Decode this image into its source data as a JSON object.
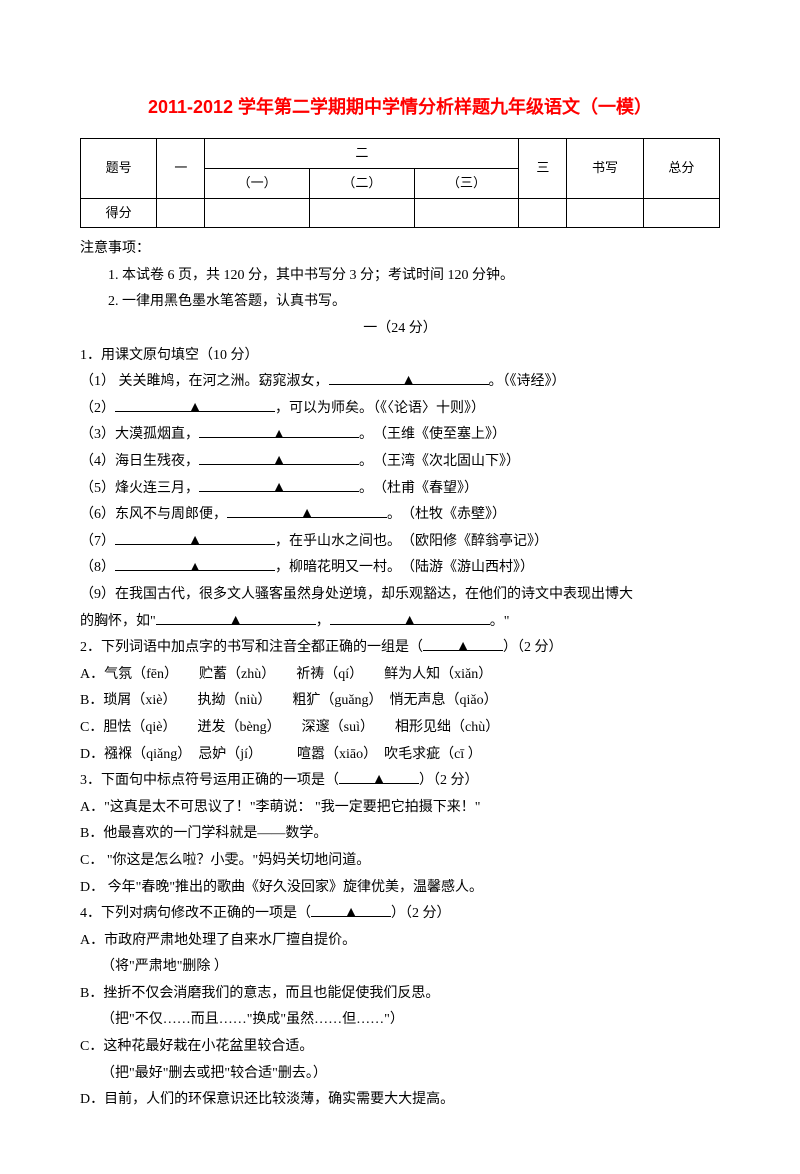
{
  "title": "2011-2012 学年第二学期期中学情分析样题九年级语文（一模）",
  "score_table": {
    "headers": {
      "num": "题号",
      "one": "一",
      "two": "二",
      "two_1": "（一）",
      "two_2": "（二）",
      "two_3": "（三）",
      "three": "三",
      "write": "书写",
      "total": "总分"
    },
    "row2": "得分"
  },
  "notice_heading": "注意事项：",
  "notices": [
    "1. 本试卷 6 页，共 120 分，其中书写分 3 分；考试时间 120 分钟。",
    "2. 一律用黑色墨水笔答题，认真书写。"
  ],
  "section1_heading": "一（24 分）",
  "q1": {
    "stem": "1．用课文原句填空（10 分）",
    "items": [
      {
        "pre": "（1） 关关雎鸠，在河之洲。窈窕淑女，",
        "tail": "。（《诗经》）"
      },
      {
        "pre": "（2）",
        "tail": "，可以为师矣。（《〈论语〉十则》）"
      },
      {
        "pre": "（3）大漠孤烟直，",
        "tail": "。　（王维《使至塞上》）"
      },
      {
        "pre": "（4）海日生残夜，",
        "tail": "。　（王湾《次北固山下》）"
      },
      {
        "pre": "（5）烽火连三月，",
        "tail": "。　（杜甫《春望》）"
      },
      {
        "pre": "（6）东风不与周郎便，",
        "tail": "。　（杜牧《赤壁》）"
      },
      {
        "pre": "（7）",
        "tail": "，在乎山水之间也。　（欧阳修《醉翁亭记》）"
      },
      {
        "pre": "（8）",
        "tail": "，柳暗花明又一村。　（陆游《游山西村》）"
      }
    ],
    "item9_pre": "（9）在我国古代，很多文人骚客虽然身处逆境，却乐观豁达，在他们的诗文中表现出博大",
    "item9_line2_pre": "的胸怀，如\"",
    "item9_mid": "，",
    "item9_tail": "。\""
  },
  "q2": {
    "stem_pre": "2．下列词语中加点字的书写和注音全都正确的一组是（",
    "stem_post": "）（2 分）",
    "opts": [
      "A．气氛（fēn）　　贮蓄（zhù）　　祈祷（qí）　　鲜为人知（xiǎn）",
      "B．琐屑（xiè）　　执拗（niù）　　粗犷（guǎng）　悄无声息（qiǎo）",
      "C．胆怯（qiè）　　迸发（bèng）　　深邃（suì）　　相形见绌（chù）",
      "D．襁褓（qiǎng）　忌妒（jí）　　　喧嚣（xiāo）　吹毛求疵（cī ）"
    ]
  },
  "q3": {
    "stem_pre": "3．下面句中标点符号运用正确的一项是（",
    "stem_post": "）（2 分）",
    "opts": [
      "A．\"这真是太不可思议了！\"李萌说： \"我一定要把它拍摄下来！\"",
      "B．他最喜欢的一门学科就是——数学。",
      "C． \"你这是怎么啦？小雯。\"妈妈关切地问道。",
      "D． 今年\"春晚\"推出的歌曲《好久没回家》旋律优美，温馨感人。"
    ]
  },
  "q4": {
    "stem_pre": "4．下列对病句修改不正确的一项是（",
    "stem_post": "）（2 分）",
    "opts": [
      {
        "main": "A．市政府严肃地处理了自来水厂擅自提价。",
        "note": "（将\"严肃地\"删除 ）"
      },
      {
        "main": "B．挫折不仅会消磨我们的意志，而且也能促使我们反思。",
        "note": "（把\"不仅……而且……\"换成\"虽然……但……\"）"
      },
      {
        "main": "C．这种花最好栽在小花盆里较合适。",
        "note": "（把\"最好\"删去或把\"较合适\"删去。）"
      },
      {
        "main": "D．目前，人们的环保意识还比较淡薄，确实需要大大提高。",
        "note": ""
      }
    ]
  }
}
